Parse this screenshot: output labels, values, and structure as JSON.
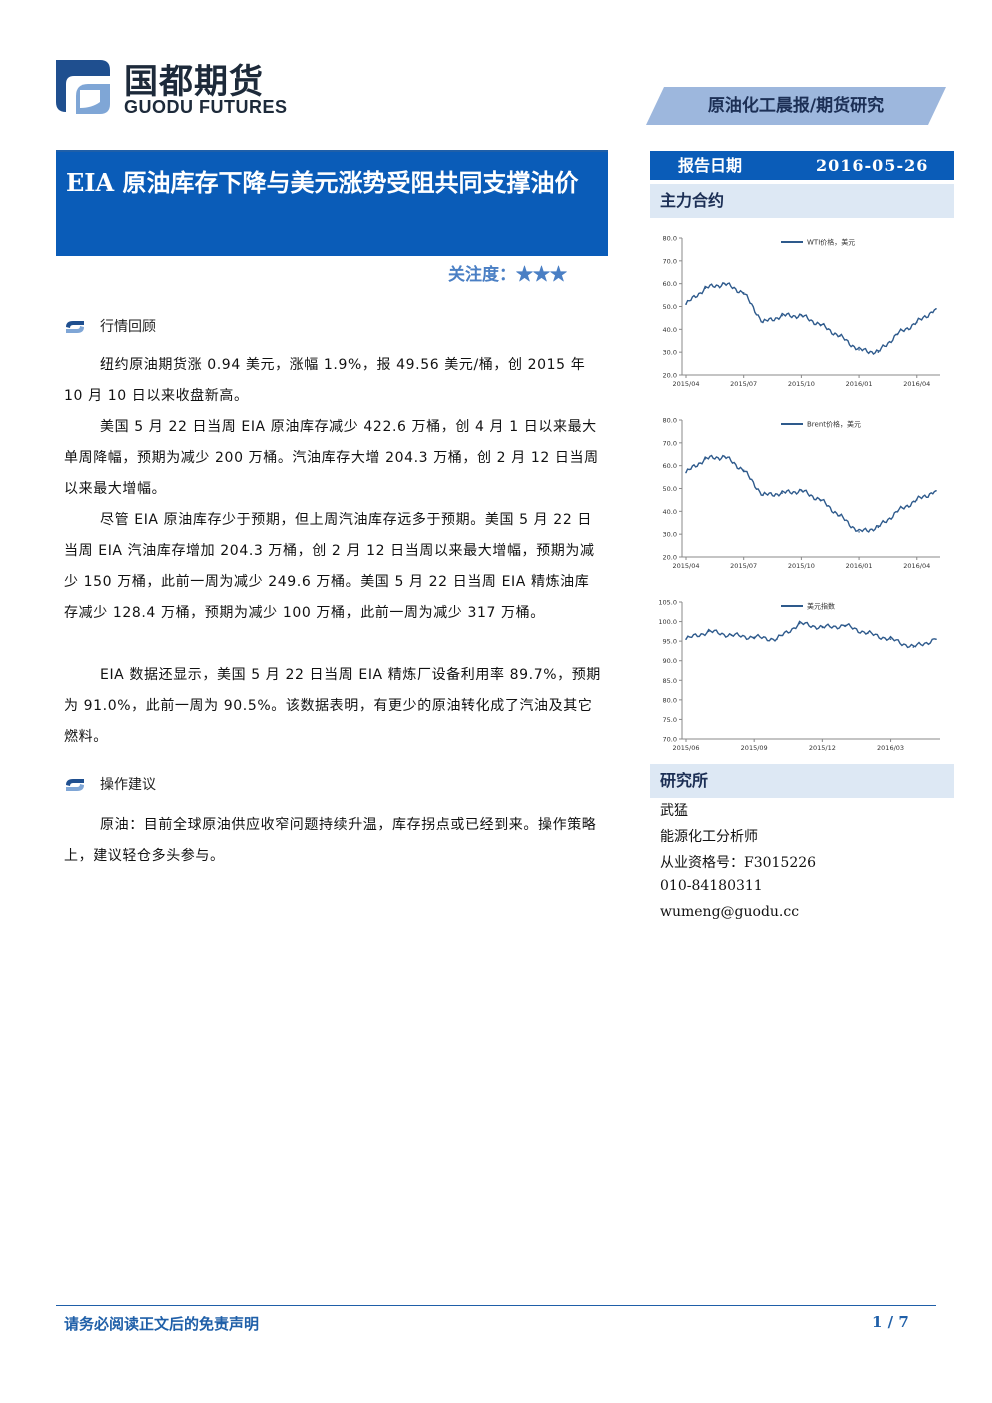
{
  "header": {
    "logo_cn": "国都期货",
    "logo_en": "GUODU FUTURES",
    "report_type": "原油化工晨报/期货研究"
  },
  "title": "EIA 原油库存下降与美元涨势受阻共同支撑油价",
  "attention": {
    "label": "关注度：",
    "stars": "★★★"
  },
  "sections": [
    {
      "heading": "行情回顾",
      "paragraphs": [
        "纽约原油期货涨 0.94 美元，涨幅 1.9%，报 49.56 美元/桶，创 2015 年 10 月 10 日以来收盘新高。",
        "美国 5 月 22 日当周 EIA 原油库存减少 422.6 万桶，创 4 月 1 日以来最大单周降幅，预期为减少 200 万桶。汽油库存大增 204.3 万桶，创 2 月 12 日当周以来最大增幅。",
        "尽管 EIA 原油库存少于预期，但上周汽油库存远多于预期。美国 5 月 22 日当周 EIA 汽油库存增加 204.3 万桶，创 2 月 12 日当周以来最大增幅，预期为减少 150 万桶，此前一周为减少 249.6 万桶。美国 5 月 22 日当周 EIA 精炼油库存减少 128.4 万桶，预期为减少 100 万桶，此前一周为减少 317 万桶。",
        "EIA 数据还显示，美国 5 月 22 日当周 EIA 精炼厂设备利用率 89.7%，预期为 91.0%，此前一周为 90.5%。该数据表明，有更少的原油转化成了汽油及其它燃料。"
      ]
    },
    {
      "heading": "操作建议",
      "paragraphs": [
        "原油：目前全球原油供应收窄问题持续升温，库存拐点或已经到来。操作策略上，建议轻仓多头参与。"
      ]
    }
  ],
  "sidebar": {
    "date_label": "报告日期",
    "date_value": "2016-05-26",
    "contracts_heading": "主力合约",
    "institute_heading": "研究所",
    "analyst": {
      "name": "武猛",
      "role": "能源化工分析师",
      "license": "从业资格号：F3015226",
      "phone": "010-84180311",
      "email": "wumeng@guodu.cc"
    }
  },
  "chart_data": [
    {
      "type": "line",
      "series": [
        {
          "name": "WTI价格，美元",
          "color": "#2e5a8c",
          "x": [
            "2015/04",
            "2015/05",
            "2015/06",
            "2015/07",
            "2015/08",
            "2015/09",
            "2015/10",
            "2015/11",
            "2015/12",
            "2016/01",
            "2016/02",
            "2016/03",
            "2016/04",
            "2016/05"
          ],
          "values": [
            51,
            58,
            60,
            56,
            43,
            46,
            46,
            42,
            37,
            31,
            30,
            38,
            43,
            49
          ]
        }
      ],
      "x_ticks": [
        "2015/04",
        "2015/07",
        "2015/10",
        "2016/01",
        "2016/04"
      ],
      "y_ticks": [
        "20.0",
        "30.0",
        "40.0",
        "50.0",
        "60.0",
        "70.0",
        "80.0"
      ],
      "ylim": [
        20,
        80
      ],
      "legend": "top-center",
      "grid": false
    },
    {
      "type": "line",
      "series": [
        {
          "name": "Brent价格，美元",
          "color": "#2e5a8c",
          "x": [
            "2015/04",
            "2015/05",
            "2015/06",
            "2015/07",
            "2015/08",
            "2015/09",
            "2015/10",
            "2015/11",
            "2015/12",
            "2016/01",
            "2016/02",
            "2016/03",
            "2016/04",
            "2016/05"
          ],
          "values": [
            57,
            63,
            64,
            58,
            47,
            48,
            49,
            45,
            38,
            31,
            33,
            40,
            45,
            49
          ]
        }
      ],
      "x_ticks": [
        "2015/04",
        "2015/07",
        "2015/10",
        "2016/01",
        "2016/04"
      ],
      "y_ticks": [
        "20.0",
        "30.0",
        "40.0",
        "50.0",
        "60.0",
        "70.0",
        "80.0"
      ],
      "ylim": [
        20,
        80
      ],
      "legend": "top-center",
      "grid": false
    },
    {
      "type": "line",
      "series": [
        {
          "name": "美元指数",
          "color": "#2e5a8c",
          "x": [
            "2015/06",
            "2015/07",
            "2015/08",
            "2015/09",
            "2015/10",
            "2015/11",
            "2015/12",
            "2016/01",
            "2016/02",
            "2016/03",
            "2016/04",
            "2016/05"
          ],
          "values": [
            95.5,
            97.5,
            96.5,
            96,
            95.5,
            99.5,
            98.5,
            99,
            97,
            95.5,
            93.5,
            95.5
          ]
        }
      ],
      "x_ticks": [
        "2015/06",
        "2015/09",
        "2015/12",
        "2016/03"
      ],
      "y_ticks": [
        "70.0",
        "75.0",
        "80.0",
        "85.0",
        "90.0",
        "95.0",
        "100.0",
        "105.0"
      ],
      "ylim": [
        70,
        105
      ],
      "legend": "top-center",
      "grid": false
    }
  ],
  "footer": {
    "disclaimer": "请务必阅读正文后的免责声明",
    "page": "1 / 7"
  },
  "colors": {
    "primary_blue": "#0a5cb8",
    "light_blue": "#9db7dd",
    "pale_blue": "#dde8f4",
    "line_blue": "#2e5a8c"
  }
}
